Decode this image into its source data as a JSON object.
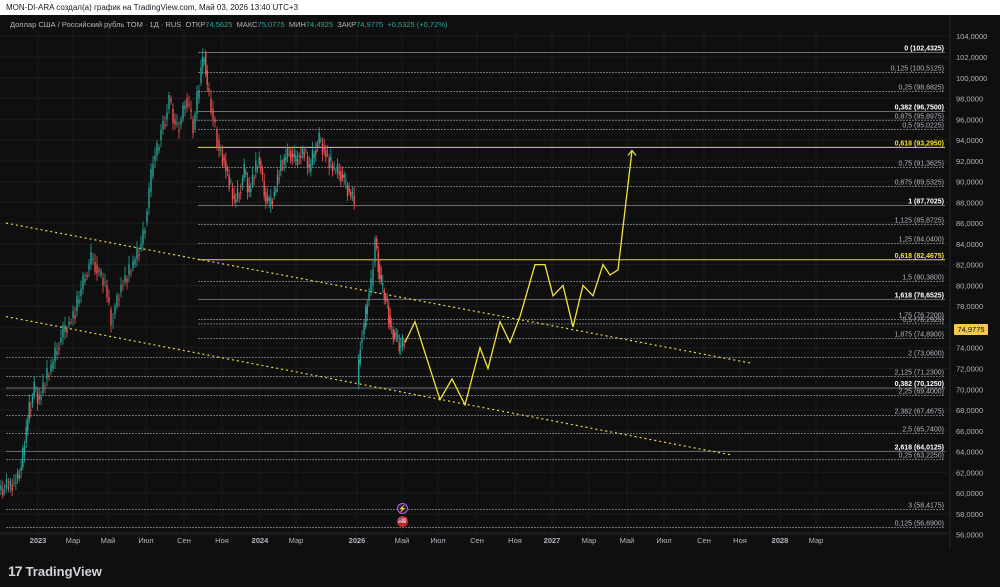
{
  "header": {
    "title": "MON-DI-ARA создал(а) график на TradingView.com, Май 03, 2026 13:40 UTC+3"
  },
  "legend": {
    "symbol": "Доллар США / Российский рубль TOM · 1Д · RUS",
    "open_label": "ОТКР",
    "open": "74,5625",
    "high_label": "МАКС",
    "high": "75,0775",
    "low_label": "МИН",
    "low": "74,4925",
    "close_label": "ЗАКР",
    "close": "74,9775",
    "change": "+0,5325 (+0,72%)"
  },
  "last_price": "74,9775",
  "brand": {
    "name": "TradingView",
    "logo": "17"
  },
  "events": {
    "lightning": "⚡",
    "flag": "🇺🇸"
  },
  "colors": {
    "background": "#0f0f0f",
    "up": "#26a69a",
    "down": "#ef5350",
    "fib_line": "#787b86",
    "forecast": "#f2e33a",
    "price_tag": "#f2c94c"
  },
  "chart_data": {
    "type": "candlestick",
    "ylim": [
      55,
      104.6
    ],
    "y_ticks": [
      "104,0000",
      "102,0000",
      "100,0000",
      "98,0000",
      "96,0000",
      "94,0000",
      "92,0000",
      "90,0000",
      "88,0000",
      "86,0000",
      "84,0000",
      "82,0000",
      "80,0000",
      "78,0000",
      "76,0000",
      "74,0000",
      "72,0000",
      "70,0000",
      "68,0000",
      "66,0000",
      "64,0000",
      "62,0000",
      "60,0000",
      "58,0000",
      "56,0000"
    ],
    "y_tick_values": [
      104,
      102,
      100,
      98,
      96,
      94,
      92,
      90,
      88,
      86,
      84,
      82,
      80,
      78,
      76,
      74,
      72,
      70,
      68,
      66,
      64,
      62,
      60,
      58,
      56
    ],
    "x_ticks": [
      "2023",
      "Мар",
      "Май",
      "Июл",
      "Сен",
      "Ноя",
      "2024",
      "Мар",
      "2026",
      "Май",
      "Июл",
      "Сен",
      "Ноя",
      "2027",
      "Мар",
      "Май",
      "Июл",
      "Сен",
      "Ноя",
      "2028",
      "Мар"
    ],
    "x_tick_values": [
      "2023-01",
      "2023-03",
      "2023-05",
      "2023-07",
      "2023-09",
      "2023-11",
      "2024-01",
      "2024-03",
      "2026-01",
      "2026-05",
      "2026-07",
      "2026-09",
      "2026-11",
      "2027-01",
      "2027-03",
      "2027-05",
      "2027-07",
      "2027-09",
      "2027-11",
      "2028-01",
      "2028-03"
    ],
    "fib_levels": [
      {
        "label": "0 (102,4325)",
        "value": 102.4325,
        "bold": true
      },
      {
        "label": "0,125 (100,5125)",
        "value": 100.5125
      },
      {
        "label": "0,25 (98,6825)",
        "value": 98.6825
      },
      {
        "label": "0,382 (96,7500)",
        "value": 96.75,
        "bold": true
      },
      {
        "label": "0,875 (95,8975)",
        "value": 95.8975
      },
      {
        "label": "0,5 (95,0225)",
        "value": 95.0225
      },
      {
        "label": "0,618 (93,2950)",
        "value": 93.295,
        "bold": true,
        "yellow": true
      },
      {
        "label": "0,75 (91,3625)",
        "value": 91.3625
      },
      {
        "label": "0,875 (89,5325)",
        "value": 89.5325
      },
      {
        "label": "1 (87,7025)",
        "value": 87.7025,
        "bold": true
      },
      {
        "label": "1,125 (85,8725)",
        "value": 85.8725
      },
      {
        "label": "1,25 (84,0400)",
        "value": 84.04
      },
      {
        "label": "0,618 (82,4675)",
        "value": 82.4675,
        "bold": true,
        "yellow": true
      },
      {
        "label": "1,5 (80,3800)",
        "value": 80.38
      },
      {
        "label": "1,618 (78,6525)",
        "value": 78.6525,
        "bold": true
      },
      {
        "label": "1,75 (76,7200)",
        "value": 76.72
      },
      {
        "label": "0,5 (76,2925)",
        "value": 76.2925
      },
      {
        "label": "1,875 (74,8900)",
        "value": 74.89
      },
      {
        "label": "2 (73,0600)",
        "value": 73.06
      },
      {
        "label": "2,125 (71,2300)",
        "value": 71.23
      },
      {
        "label": "0,382 (70,1250)",
        "value": 70.125,
        "bold": true
      },
      {
        "label": "2,25 (69,4000)",
        "value": 69.4
      },
      {
        "label": "2,382 (67,4675)",
        "value": 67.4675
      },
      {
        "label": "2,5 (65,7400)",
        "value": 65.74
      },
      {
        "label": "2,618 (64,0125)",
        "value": 64.0125,
        "bold": true
      },
      {
        "label": "0,25 (63,2250)",
        "value": 63.225
      },
      {
        "label": "3 (58,4175)",
        "value": 58.4175
      },
      {
        "label": "0,125 (56,6900)",
        "value": 56.69
      }
    ],
    "price_path": [
      [
        0,
        60.3
      ],
      [
        15,
        61
      ],
      [
        22,
        62.5
      ],
      [
        27,
        66
      ],
      [
        30,
        68
      ],
      [
        35,
        70
      ],
      [
        40,
        69
      ],
      [
        46,
        71
      ],
      [
        52,
        72
      ],
      [
        58,
        74
      ],
      [
        64,
        75.5
      ],
      [
        70,
        76.5
      ],
      [
        76,
        77.5
      ],
      [
        80,
        79
      ],
      [
        86,
        81
      ],
      [
        92,
        82.5
      ],
      [
        96,
        82
      ],
      [
        100,
        81
      ],
      [
        106,
        80
      ],
      [
        112,
        76.5
      ],
      [
        116,
        78
      ],
      [
        122,
        80
      ],
      [
        128,
        81
      ],
      [
        134,
        82
      ],
      [
        138,
        83
      ],
      [
        142,
        84
      ],
      [
        146,
        86
      ],
      [
        150,
        89
      ],
      [
        154,
        92
      ],
      [
        158,
        93
      ],
      [
        162,
        95
      ],
      [
        166,
        96
      ],
      [
        170,
        98
      ],
      [
        174,
        96
      ],
      [
        178,
        95
      ],
      [
        182,
        96
      ],
      [
        186,
        98
      ],
      [
        190,
        97
      ],
      [
        194,
        95
      ],
      [
        198,
        98
      ],
      [
        202,
        101
      ],
      [
        205,
        102.4
      ],
      [
        208,
        99
      ],
      [
        212,
        97
      ],
      [
        216,
        95
      ],
      [
        220,
        93
      ],
      [
        225,
        92
      ],
      [
        230,
        90
      ],
      [
        235,
        88
      ],
      [
        240,
        89
      ],
      [
        245,
        91
      ],
      [
        250,
        89
      ],
      [
        255,
        91
      ],
      [
        260,
        92
      ],
      [
        265,
        89
      ],
      [
        270,
        87.7
      ],
      [
        275,
        89
      ],
      [
        280,
        91
      ],
      [
        285,
        92
      ],
      [
        290,
        93
      ],
      [
        295,
        92
      ],
      [
        300,
        92.5
      ],
      [
        305,
        93
      ],
      [
        310,
        91
      ],
      [
        315,
        93
      ],
      [
        320,
        94
      ],
      [
        325,
        93
      ],
      [
        330,
        92
      ],
      [
        335,
        91
      ],
      [
        340,
        91
      ],
      [
        345,
        90
      ],
      [
        350,
        89
      ],
      [
        355,
        88.5
      ]
    ],
    "price_path_2026": [
      [
        358,
        70.5
      ],
      [
        361,
        74.5
      ],
      [
        365,
        76
      ],
      [
        368,
        78.5
      ],
      [
        372,
        80
      ],
      [
        376,
        84.5
      ],
      [
        379,
        82
      ],
      [
        382,
        80
      ],
      [
        385,
        79
      ],
      [
        388,
        78
      ],
      [
        391,
        76
      ],
      [
        394,
        75.5
      ],
      [
        397,
        75
      ],
      [
        400,
        74
      ],
      [
        405,
        74.5
      ]
    ],
    "forecast_path": [
      [
        405,
        74.5
      ],
      [
        415,
        76.5
      ],
      [
        440,
        69
      ],
      [
        452,
        71
      ],
      [
        465,
        68.5
      ],
      [
        480,
        74
      ],
      [
        488,
        72
      ],
      [
        500,
        76.5
      ],
      [
        510,
        74.5
      ],
      [
        520,
        77
      ],
      [
        535,
        82
      ],
      [
        545,
        82
      ],
      [
        553,
        79
      ],
      [
        563,
        80
      ],
      [
        573,
        76
      ],
      [
        583,
        80
      ],
      [
        593,
        79
      ],
      [
        603,
        82
      ],
      [
        610,
        81
      ],
      [
        618,
        81.5
      ],
      [
        632,
        93
      ]
    ],
    "channel_upper": [
      [
        6,
        86
      ],
      [
        752,
        72.5
      ]
    ],
    "channel_lower": [
      [
        6,
        77
      ],
      [
        730,
        63.7
      ]
    ]
  }
}
